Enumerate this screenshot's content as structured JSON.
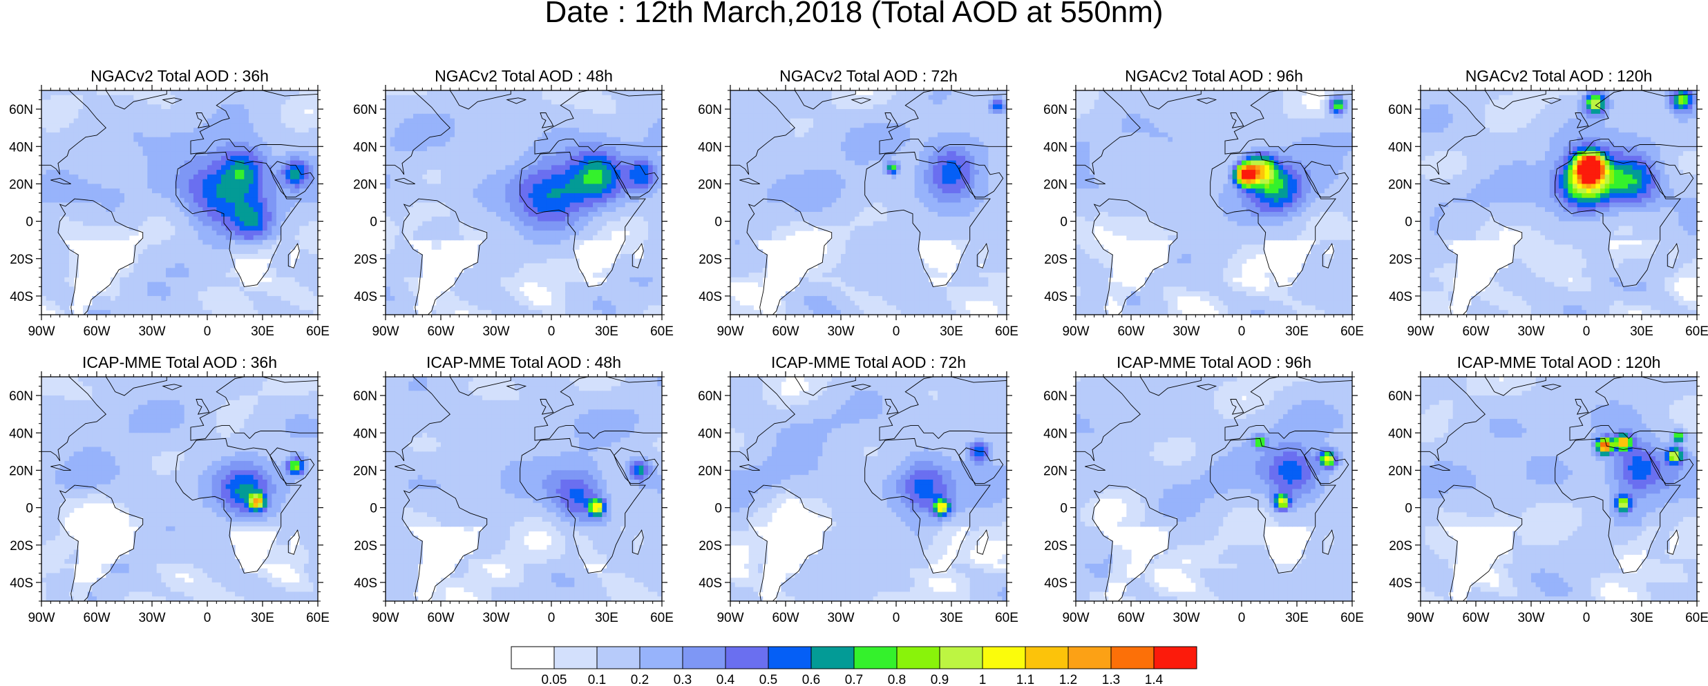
{
  "figure": {
    "title": "Date : 12th March,2018 (Total AOD at 550nm)"
  },
  "axes": {
    "lon_ticks": [
      "90W",
      "60W",
      "30W",
      "0",
      "30E",
      "60E"
    ],
    "lat_ticks": [
      "60N",
      "40N",
      "20N",
      "0",
      "20S",
      "40S"
    ],
    "lon_range_deg": [
      -90,
      60
    ],
    "lat_range_deg": [
      -50,
      70
    ]
  },
  "panels": [
    {
      "title": "NGACv2 Total AOD : 36h",
      "model": "NGACv2",
      "lead_hours": 36,
      "hotspots": [
        {
          "lon": 20,
          "lat": 28,
          "aod": 0.45,
          "spread": 9
        },
        {
          "lon": 48,
          "lat": 26,
          "aod": 0.45,
          "spread": 5
        },
        {
          "lon": 5,
          "lat": 16,
          "aod": 0.4,
          "spread": 14
        },
        {
          "lon": 25,
          "lat": 0,
          "aod": 0.35,
          "spread": 8
        }
      ]
    },
    {
      "title": "NGACv2 Total AOD : 48h",
      "model": "NGACv2",
      "lead_hours": 48,
      "hotspots": [
        {
          "lon": 25,
          "lat": 25,
          "aod": 0.45,
          "spread": 10
        },
        {
          "lon": 50,
          "lat": 25,
          "aod": 0.4,
          "spread": 6
        },
        {
          "lon": 0,
          "lat": 15,
          "aod": 0.4,
          "spread": 14
        }
      ]
    },
    {
      "title": "NGACv2 Total AOD : 72h",
      "model": "NGACv2",
      "lead_hours": 72,
      "hotspots": [
        {
          "lon": 30,
          "lat": 28,
          "aod": 0.45,
          "spread": 10
        },
        {
          "lon": 55,
          "lat": 62,
          "aod": 0.5,
          "spread": 3
        },
        {
          "lon": -2,
          "lat": 28,
          "aod": 0.7,
          "spread": 2
        }
      ]
    },
    {
      "title": "NGACv2 Total AOD : 96h",
      "model": "NGACv2",
      "lead_hours": 96,
      "hotspots": [
        {
          "lon": 2,
          "lat": 25,
          "aod": 1.2,
          "spread": 4
        },
        {
          "lon": 10,
          "lat": 28,
          "aod": 0.8,
          "spread": 6
        },
        {
          "lon": 52,
          "lat": 62,
          "aod": 0.75,
          "spread": 3
        },
        {
          "lon": 20,
          "lat": 18,
          "aod": 0.45,
          "spread": 10
        }
      ]
    },
    {
      "title": "NGACv2 Total AOD : 120h",
      "model": "NGACv2",
      "lead_hours": 120,
      "hotspots": [
        {
          "lon": 2,
          "lat": 29,
          "aod": 1.4,
          "spread": 5
        },
        {
          "lon": 0,
          "lat": 22,
          "aod": 0.9,
          "spread": 10
        },
        {
          "lon": 5,
          "lat": 63,
          "aod": 0.9,
          "spread": 4
        },
        {
          "lon": 52,
          "lat": 65,
          "aod": 0.7,
          "spread": 4
        },
        {
          "lon": 25,
          "lat": 22,
          "aod": 0.5,
          "spread": 10
        }
      ]
    },
    {
      "title": "ICAP-MME Total AOD : 36h",
      "model": "ICAP-MME",
      "lead_hours": 36,
      "hotspots": [
        {
          "lon": 27,
          "lat": 3,
          "aod": 0.85,
          "spread": 3
        },
        {
          "lon": 48,
          "lat": 22,
          "aod": 0.75,
          "spread": 3
        },
        {
          "lon": 20,
          "lat": 8,
          "aod": 0.4,
          "spread": 10
        }
      ]
    },
    {
      "title": "ICAP-MME Total AOD : 48h",
      "model": "ICAP-MME",
      "lead_hours": 48,
      "hotspots": [
        {
          "lon": 25,
          "lat": 0,
          "aod": 0.85,
          "spread": 3
        },
        {
          "lon": 48,
          "lat": 20,
          "aod": 0.5,
          "spread": 4
        },
        {
          "lon": 15,
          "lat": 5,
          "aod": 0.4,
          "spread": 10
        }
      ]
    },
    {
      "title": "ICAP-MME Total AOD : 72h",
      "model": "ICAP-MME",
      "lead_hours": 72,
      "hotspots": [
        {
          "lon": 25,
          "lat": 0,
          "aod": 0.85,
          "spread": 3
        },
        {
          "lon": 45,
          "lat": 30,
          "aod": 0.5,
          "spread": 4
        },
        {
          "lon": 15,
          "lat": 10,
          "aod": 0.4,
          "spread": 10
        }
      ]
    },
    {
      "title": "ICAP-MME Total AOD : 96h",
      "model": "ICAP-MME",
      "lead_hours": 96,
      "hotspots": [
        {
          "lon": 47,
          "lat": 26,
          "aod": 0.9,
          "spread": 3
        },
        {
          "lon": 10,
          "lat": 35,
          "aod": 0.75,
          "spread": 2
        },
        {
          "lon": 22,
          "lat": 3,
          "aod": 0.85,
          "spread": 3
        },
        {
          "lon": 28,
          "lat": 20,
          "aod": 0.4,
          "spread": 10
        }
      ]
    },
    {
      "title": "ICAP-MME Total AOD : 120h",
      "model": "ICAP-MME",
      "lead_hours": 120,
      "hotspots": [
        {
          "lon": 10,
          "lat": 33,
          "aod": 1.3,
          "spread": 3
        },
        {
          "lon": 20,
          "lat": 35,
          "aod": 1.0,
          "spread": 3
        },
        {
          "lon": 48,
          "lat": 28,
          "aod": 0.85,
          "spread": 3
        },
        {
          "lon": 50,
          "lat": 38,
          "aod": 0.85,
          "spread": 2
        },
        {
          "lon": 20,
          "lat": 2,
          "aod": 0.8,
          "spread": 3
        },
        {
          "lon": 28,
          "lat": 22,
          "aod": 0.45,
          "spread": 10
        }
      ]
    }
  ],
  "colorbar": {
    "labels": [
      "0.05",
      "0.1",
      "0.2",
      "0.3",
      "0.4",
      "0.5",
      "0.6",
      "0.7",
      "0.8",
      "0.9",
      "1",
      "1.1",
      "1.2",
      "1.3",
      "1.4"
    ],
    "colors": [
      "#ffffff",
      "#d3e0fc",
      "#b7cbfa",
      "#97b3fb",
      "#7e97f5",
      "#6a6ff0",
      "#055ff6",
      "#039b96",
      "#34f12c",
      "#89f30a",
      "#bdf542",
      "#fbfc0b",
      "#fcc30a",
      "#fca115",
      "#fc7008",
      "#fc1b0b"
    ]
  }
}
